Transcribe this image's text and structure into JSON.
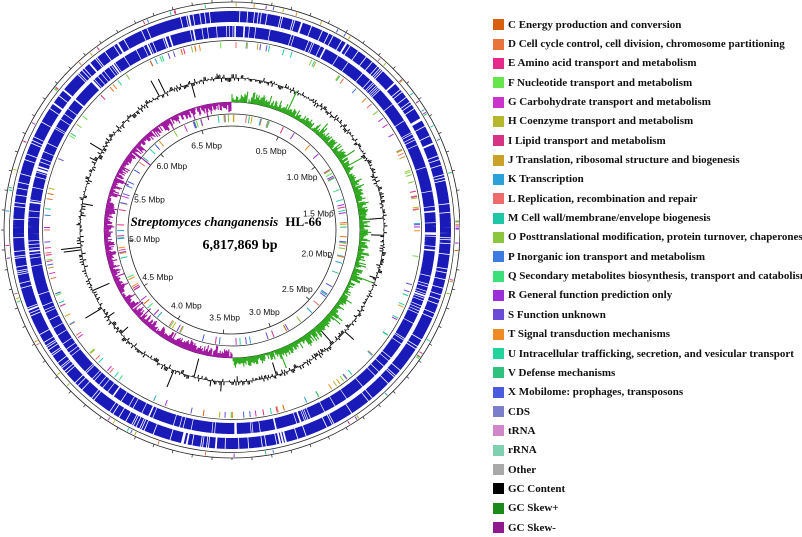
{
  "genome": {
    "species": "Streptomyces changanensis",
    "strain": "HL-66",
    "size_label": "6,817,869 bp",
    "ticks": [
      "0.5 Mbp",
      "1.0 Mbp",
      "1.5 Mbp",
      "2.0 Mbp",
      "2.5 Mbp",
      "3.0 Mbp",
      "3.5 Mbp",
      "4.0 Mbp",
      "4.5 Mbp",
      "5.0 Mbp",
      "5.5 Mbp",
      "6.0 Mbp",
      "6.5 Mbp"
    ],
    "tick_values_mbp": [
      0.5,
      1.0,
      1.5,
      2.0,
      2.5,
      3.0,
      3.5,
      4.0,
      4.5,
      5.0,
      5.5,
      6.0,
      6.5
    ],
    "total_mbp": 6.817869
  },
  "legend": [
    {
      "label": "C Energy production and conversion",
      "color": "#d95f0e"
    },
    {
      "label": "D Cell cycle control, cell division, chromosome partitioning",
      "color": "#e8743b"
    },
    {
      "label": "E Amino acid transport and metabolism",
      "color": "#e7298a"
    },
    {
      "label": "F Nucleotide transport and metabolism",
      "color": "#66e64a"
    },
    {
      "label": "G Carbohydrate transport and metabolism",
      "color": "#cc33cc"
    },
    {
      "label": "H Coenzyme transport and metabolism",
      "color": "#b5b82a"
    },
    {
      "label": "I Lipid transport and metabolism",
      "color": "#d63384"
    },
    {
      "label": "J Translation, ribosomal structure and biogenesis",
      "color": "#c9a227"
    },
    {
      "label": "K Transcription",
      "color": "#2aa1d8"
    },
    {
      "label": "L Replication, recombination and repair",
      "color": "#ef6b6b"
    },
    {
      "label": "M Cell wall/membrane/envelope biogenesis",
      "color": "#1fc7a6"
    },
    {
      "label": "O Posttranslational modification, protein turnover, chaperones",
      "color": "#8cc63f"
    },
    {
      "label": "P Inorganic ion transport and metabolism",
      "color": "#3d7be0"
    },
    {
      "label": "Q Secondary metabolites biosynthesis, transport and catabolism",
      "color": "#3ce07a"
    },
    {
      "label": "R General function prediction only",
      "color": "#9b30d9"
    },
    {
      "label": "S Function unknown",
      "color": "#6a4cd6"
    },
    {
      "label": "T Signal transduction mechanisms",
      "color": "#f08a24"
    },
    {
      "label": "U Intracellular trafficking, secretion, and vesicular transport",
      "color": "#22d39b"
    },
    {
      "label": "V Defense mechanisms",
      "color": "#2ec27e"
    },
    {
      "label": "X Mobilome: prophages, transposons",
      "color": "#4b5be0"
    },
    {
      "label": "CDS",
      "color": "#7b7fc9"
    },
    {
      "label": "tRNA",
      "color": "#cf87c9"
    },
    {
      "label": "rRNA",
      "color": "#7fd0b0"
    },
    {
      "label": "Other",
      "color": "#a9a9a9"
    },
    {
      "label": "GC Content",
      "color": "#000000"
    },
    {
      "label": "GC Skew+",
      "color": "#1a8a1a"
    },
    {
      "label": "GC Skew-",
      "color": "#8e1a8e"
    }
  ],
  "colors": {
    "cds": "#1a1ab8",
    "gc_content": "#000000",
    "gc_skew_pos": "#2aa81a",
    "gc_skew_neg": "#a11aa1"
  }
}
